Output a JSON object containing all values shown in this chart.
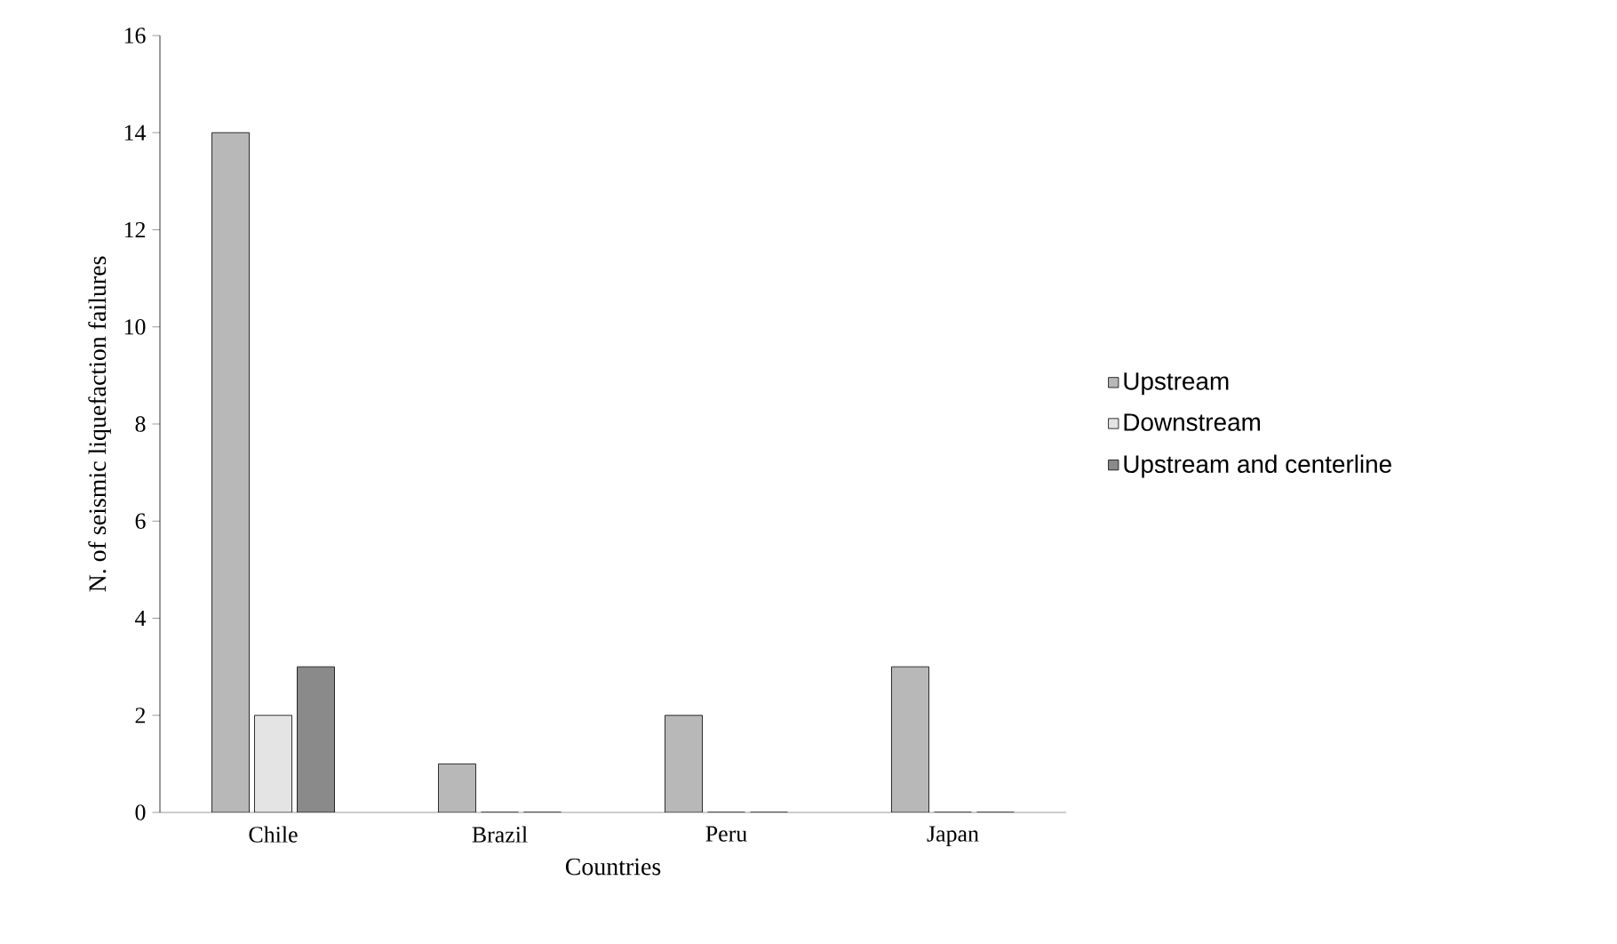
{
  "chart_data": {
    "type": "bar",
    "xlabel": "Countries",
    "ylabel": "N. of seismic liquefaction failures",
    "categories": [
      "Chile",
      "Brazil",
      "Peru",
      "Japan"
    ],
    "series": [
      {
        "name": "Upstream",
        "color": "#b8b8b8",
        "values": [
          14,
          1,
          2,
          3
        ]
      },
      {
        "name": "Downstream",
        "color": "#e4e4e4",
        "values": [
          2,
          0,
          0,
          0
        ]
      },
      {
        "name": "Upstream and centerline",
        "color": "#8a8a8a",
        "values": [
          3,
          0,
          0,
          0
        ]
      }
    ],
    "ylim": [
      0,
      16
    ],
    "yticks": [
      0,
      2,
      4,
      6,
      8,
      10,
      12,
      14,
      16
    ],
    "grid": false,
    "legend": "right"
  }
}
